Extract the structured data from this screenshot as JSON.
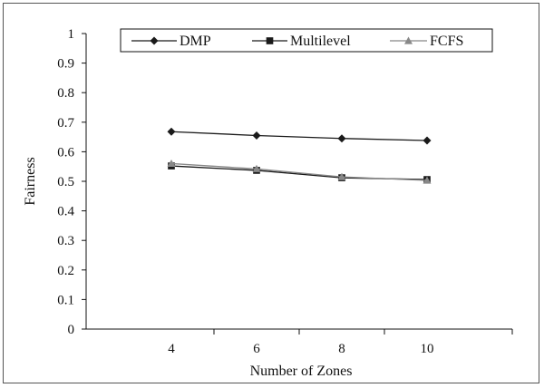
{
  "chart_data": {
    "type": "line",
    "xlabel": "Number of Zones",
    "ylabel": "Fairness",
    "ylim": [
      0,
      1
    ],
    "y_ticks": [
      "0",
      "0.1",
      "0.2",
      "0.3",
      "0.4",
      "0.5",
      "0.6",
      "0.7",
      "0.8",
      "0.9",
      "1"
    ],
    "categories": [
      "4",
      "6",
      "8",
      "10"
    ],
    "grid": false,
    "legend_position": "top",
    "series": [
      {
        "name": "DMP",
        "values": [
          0.668,
          0.655,
          0.645,
          0.638
        ],
        "color": "#1a1a1a",
        "marker": "diamond"
      },
      {
        "name": "Multilevel",
        "values": [
          0.552,
          0.537,
          0.512,
          0.506
        ],
        "color": "#1a1a1a",
        "marker": "square"
      },
      {
        "name": "FCFS",
        "values": [
          0.56,
          0.542,
          0.515,
          0.503
        ],
        "color": "#888888",
        "marker": "triangle"
      }
    ]
  }
}
